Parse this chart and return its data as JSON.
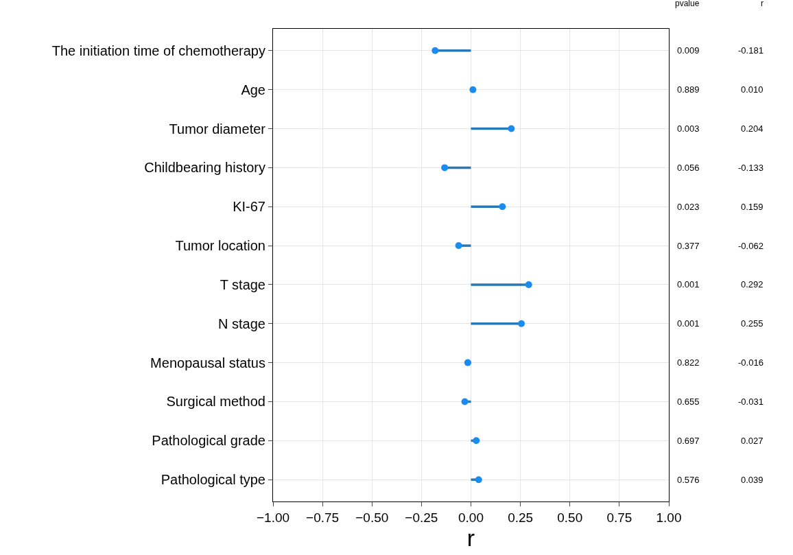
{
  "chart_data": {
    "type": "lollipop",
    "orientation": "horizontal",
    "xlabel": "r",
    "categories": [
      "The initiation time of chemotherapy",
      "Age",
      "Tumor diameter",
      "Childbearing history",
      "KI-67",
      "Tumor location",
      "T stage",
      "N stage",
      "Menopausal status",
      "Surgical method",
      "Pathological grade",
      "Pathological type"
    ],
    "series": [
      {
        "color": "#1a8cf0",
        "values": [
          -0.181,
          0.01,
          0.204,
          -0.133,
          0.159,
          -0.062,
          0.292,
          0.255,
          -0.016,
          -0.031,
          0.027,
          0.039
        ],
        "value_labels": [
          "-0.181",
          "0.010",
          "0.204",
          "-0.133",
          "0.159",
          "-0.062",
          "0.292",
          "0.255",
          "-0.016",
          "-0.031",
          "0.027",
          "0.039"
        ]
      }
    ],
    "xlim": [
      -1.0,
      1.0
    ],
    "xticks": [
      {
        "value": -1.0,
        "label": "−1.00"
      },
      {
        "value": -0.75,
        "label": "−0.75"
      },
      {
        "value": -0.5,
        "label": "−0.50"
      },
      {
        "value": -0.25,
        "label": "−0.25"
      },
      {
        "value": 0,
        "label": "0.00"
      },
      {
        "value": 0.25,
        "label": "0.25"
      },
      {
        "value": 0.5,
        "label": "0.50"
      },
      {
        "value": 0.75,
        "label": "0.75"
      },
      {
        "value": 1.0,
        "label": "1.00"
      }
    ],
    "grid": true,
    "marker": "circle",
    "annotations": [
      "pvalue",
      "r",
      "0.009",
      "0.889",
      "0.003",
      "0.056",
      "0.023",
      "0.377",
      "0.001",
      "0.001",
      "0.822",
      "0.655",
      "0.697",
      "0.576"
    ]
  }
}
